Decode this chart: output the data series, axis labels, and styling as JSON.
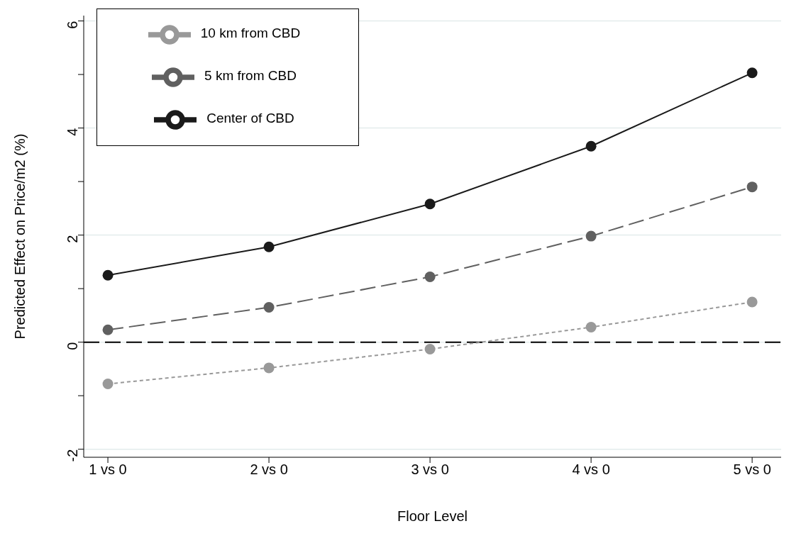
{
  "chart_data": {
    "type": "line",
    "xlabel": "Floor Level",
    "ylabel": "Predicted Effect on Price/m2 (%)",
    "categories": [
      "1 vs 0",
      "2 vs 0",
      "3 vs 0",
      "4 vs 0",
      "5 vs 0"
    ],
    "series": [
      {
        "name": "Center of CBD",
        "color": "#1a1a1a",
        "line_style": "solid",
        "values": [
          1.25,
          1.78,
          2.58,
          3.66,
          5.03
        ]
      },
      {
        "name": "5 km from CBD",
        "color": "#606060",
        "line_style": "dashed",
        "values": [
          0.23,
          0.65,
          1.22,
          1.98,
          2.9
        ]
      },
      {
        "name": "10 km from CBD",
        "color": "#999999",
        "line_style": "dotted",
        "values": [
          -0.78,
          -0.48,
          -0.13,
          0.28,
          0.75
        ]
      }
    ],
    "ylim": [
      -2.15,
      6.1
    ],
    "yticks": [
      -2,
      {
        "value": -1,
        "label": null
      },
      0,
      {
        "value": 1,
        "label": null
      },
      2,
      {
        "value": 3,
        "label": null
      },
      4,
      {
        "value": 5,
        "label": null
      },
      6
    ],
    "ref_lines": [
      {
        "axis": "y",
        "value": 0,
        "color": "#000000",
        "line_style": "dashed"
      }
    ],
    "grid": "y",
    "legend": "top left",
    "marker": "circle"
  }
}
